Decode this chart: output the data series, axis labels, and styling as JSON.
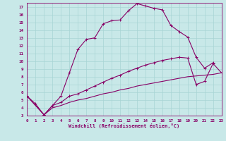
{
  "xlabel": "Windchill (Refroidissement éolien,°C)",
  "bg_color": "#c8e8e8",
  "grid_color": "#a8d4d4",
  "line_color": "#880066",
  "xlim": [
    0,
    23
  ],
  "ylim": [
    3,
    17.5
  ],
  "xticks": [
    0,
    1,
    2,
    3,
    4,
    5,
    6,
    7,
    8,
    9,
    10,
    11,
    12,
    13,
    14,
    15,
    16,
    17,
    18,
    19,
    20,
    21,
    22,
    23
  ],
  "yticks": [
    3,
    4,
    5,
    6,
    7,
    8,
    9,
    10,
    11,
    12,
    13,
    14,
    15,
    16,
    17
  ],
  "line1_x": [
    0,
    1,
    2,
    3,
    4,
    5,
    6,
    7,
    8,
    9,
    10,
    11,
    12,
    13,
    14,
    15,
    16,
    17,
    18,
    19,
    20,
    21,
    22
  ],
  "line1_y": [
    5.5,
    4.5,
    3.1,
    4.3,
    5.5,
    8.5,
    11.5,
    12.8,
    13.0,
    14.8,
    15.2,
    15.3,
    16.5,
    17.4,
    17.1,
    16.8,
    16.6,
    14.6,
    13.8,
    13.1,
    10.5,
    9.1,
    9.8
  ],
  "line2_x": [
    0,
    2,
    3,
    4,
    5,
    6,
    7,
    8,
    9,
    10,
    11,
    12,
    13,
    14,
    15,
    16,
    17,
    18,
    19,
    20,
    21,
    22,
    23
  ],
  "line2_y": [
    5.5,
    3.1,
    4.3,
    4.7,
    5.5,
    5.8,
    6.3,
    6.8,
    7.3,
    7.8,
    8.2,
    8.7,
    9.1,
    9.5,
    9.8,
    10.1,
    10.3,
    10.5,
    10.4,
    7.0,
    7.4,
    9.7,
    8.5
  ],
  "line3_x": [
    0,
    2,
    3,
    4,
    5,
    6,
    7,
    8,
    9,
    10,
    11,
    12,
    13,
    14,
    15,
    16,
    17,
    18,
    19,
    20,
    21,
    22,
    23
  ],
  "line3_y": [
    5.5,
    3.1,
    4.0,
    4.3,
    4.7,
    5.0,
    5.2,
    5.5,
    5.8,
    6.0,
    6.3,
    6.5,
    6.8,
    7.0,
    7.2,
    7.4,
    7.6,
    7.8,
    8.0,
    8.1,
    8.2,
    8.3,
    8.5
  ]
}
